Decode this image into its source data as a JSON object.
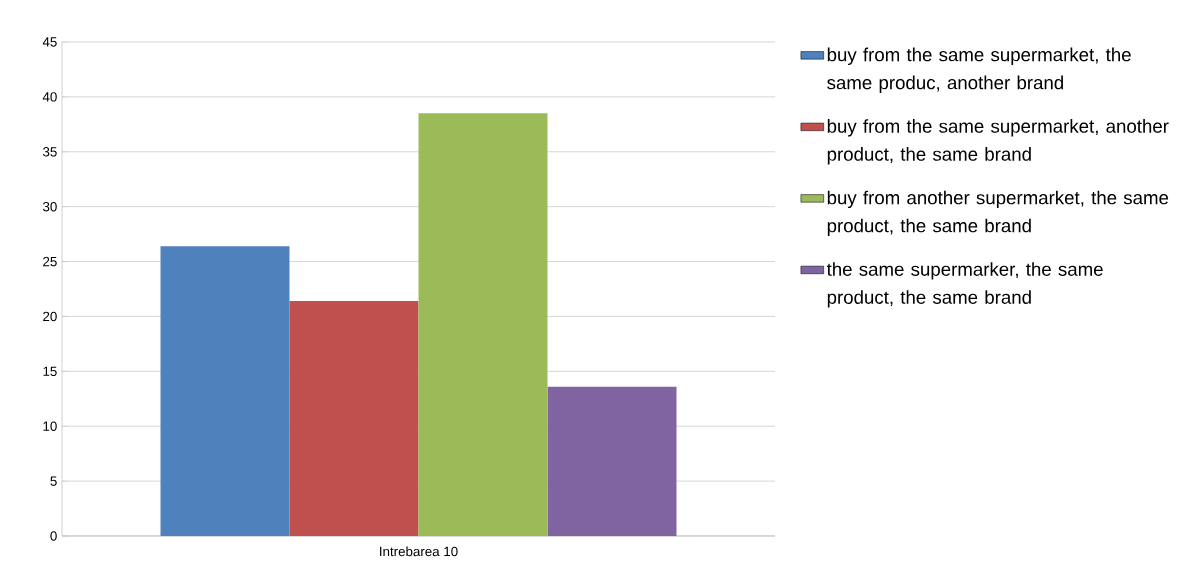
{
  "chart_data": {
    "type": "bar",
    "categories": [
      "Intrebarea 10"
    ],
    "series": [
      {
        "name": "buy from the same supermarket, the same produc, another brand",
        "color": "#4f81bd",
        "values": [
          26.4
        ]
      },
      {
        "name": "buy from the same supermarket, another product, the same brand",
        "color": "#c0504d",
        "values": [
          21.4
        ]
      },
      {
        "name": "buy from another supermarket, the same product, the same brand",
        "color": "#9bbb59",
        "values": [
          38.5
        ]
      },
      {
        "name": "the same supermarker, the same product, the same brand",
        "color": "#8064a2",
        "values": [
          13.6
        ]
      }
    ],
    "ylim": [
      0,
      45
    ],
    "yticks": [
      0,
      5,
      10,
      15,
      20,
      25,
      30,
      35,
      40,
      45
    ],
    "grid": "y",
    "legend": "right"
  }
}
